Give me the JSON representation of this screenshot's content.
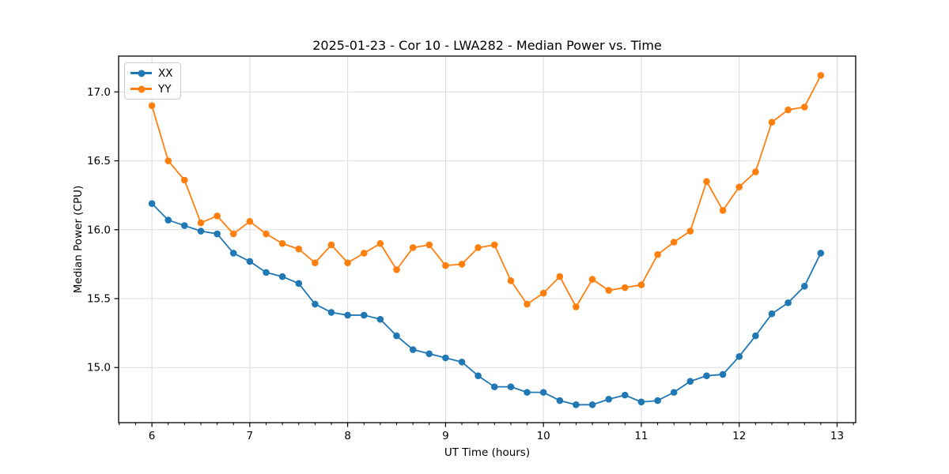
{
  "chart_data": {
    "type": "line",
    "title": "2025-01-23 - Cor 10 - LWA282 - Median Power vs. Time",
    "xlabel": "UT Time (hours)",
    "ylabel": "Median Power (CPU)",
    "xlim": [
      5.66,
      13.19
    ],
    "ylim": [
      14.6,
      17.26
    ],
    "x_tick_values": [
      6,
      7,
      8,
      9,
      10,
      11,
      12,
      13
    ],
    "x_tick_labels": [
      "6",
      "7",
      "8",
      "9",
      "10",
      "11",
      "12",
      "13"
    ],
    "y_tick_values": [
      15.0,
      15.5,
      16.0,
      16.5,
      17.0
    ],
    "y_tick_labels": [
      "15.0",
      "15.5",
      "16.0",
      "16.5",
      "17.0"
    ],
    "x_minor_tick_step": 0.1666667,
    "grid": true,
    "legend_position": "upper-left",
    "x": [
      6.0,
      6.167,
      6.333,
      6.5,
      6.667,
      6.833,
      7.0,
      7.167,
      7.333,
      7.5,
      7.667,
      7.833,
      8.0,
      8.167,
      8.333,
      8.5,
      8.667,
      8.833,
      9.0,
      9.167,
      9.333,
      9.5,
      9.667,
      9.833,
      10.0,
      10.167,
      10.333,
      10.5,
      10.667,
      10.833,
      11.0,
      11.167,
      11.333,
      11.5,
      11.667,
      11.833,
      12.0,
      12.167,
      12.333,
      12.5,
      12.667,
      12.833
    ],
    "series": [
      {
        "name": "XX",
        "color": "#1f77b4",
        "values": [
          16.19,
          16.07,
          16.03,
          15.99,
          15.97,
          15.83,
          15.77,
          15.69,
          15.66,
          15.61,
          15.46,
          15.4,
          15.38,
          15.38,
          15.35,
          15.23,
          15.13,
          15.1,
          15.07,
          15.04,
          14.94,
          14.86,
          14.86,
          14.82,
          14.82,
          14.76,
          14.73,
          14.73,
          14.77,
          14.8,
          14.75,
          14.76,
          14.82,
          14.9,
          14.94,
          14.95,
          15.08,
          15.23,
          15.39,
          15.47,
          15.59,
          15.83
        ]
      },
      {
        "name": "YY",
        "color": "#ff7f0e",
        "values": [
          16.9,
          16.5,
          16.36,
          16.05,
          16.1,
          15.97,
          16.06,
          15.97,
          15.9,
          15.86,
          15.76,
          15.89,
          15.76,
          15.83,
          15.9,
          15.71,
          15.87,
          15.89,
          15.74,
          15.75,
          15.87,
          15.89,
          15.63,
          15.46,
          15.54,
          15.66,
          15.44,
          15.64,
          15.56,
          15.58,
          15.6,
          15.82,
          15.91,
          15.99,
          16.35,
          16.14,
          16.31,
          16.42,
          16.78,
          16.87,
          16.89,
          17.12
        ]
      }
    ],
    "style": {
      "grid_color": "#dcdcdc",
      "spine_color": "#000000",
      "background": "#ffffff",
      "marker": "circle",
      "marker_radius": 4.3,
      "line_width": 1.8
    }
  }
}
